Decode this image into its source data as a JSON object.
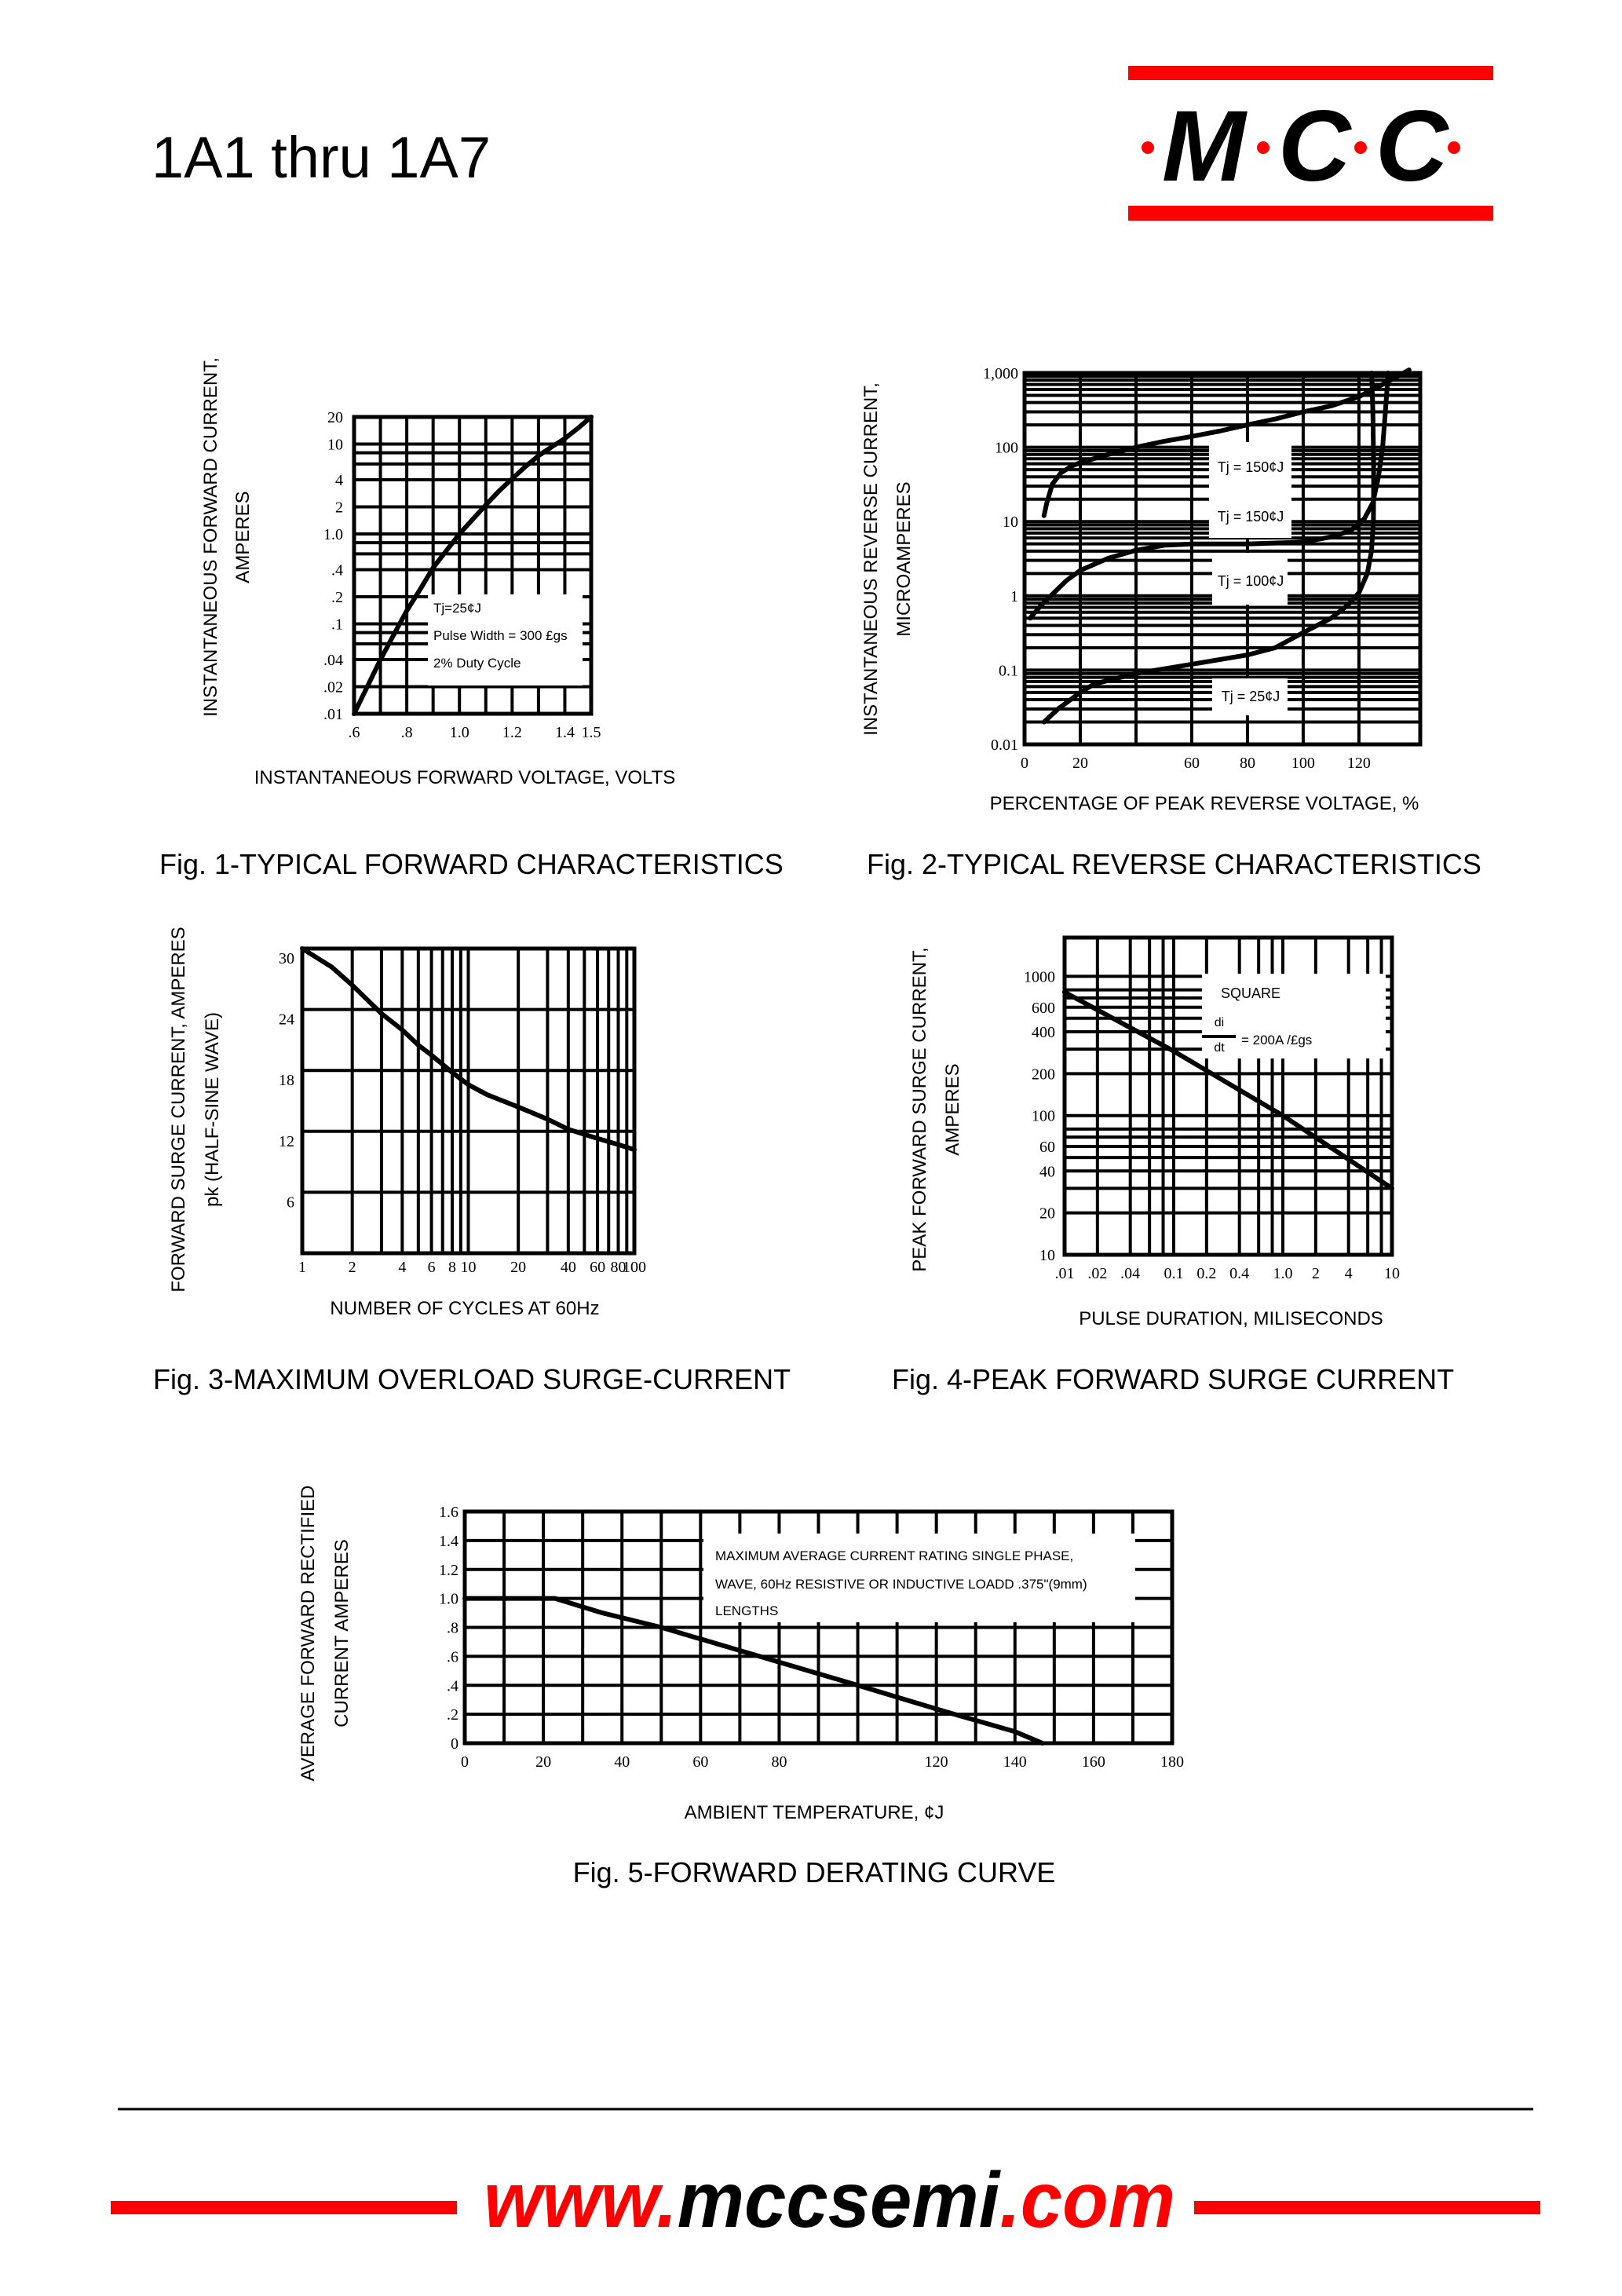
{
  "header": {
    "title": "1A1 thru 1A7",
    "logo": {
      "letters": [
        "M",
        "C",
        "C"
      ],
      "text_color": "#000000",
      "accent_color": "#ff0000"
    }
  },
  "footer": {
    "url_prefix": "www.",
    "url_name": "mccsemi",
    "url_suffix": ".com",
    "accent_color": "#ff0000"
  },
  "chart_data": [
    {
      "type": "line",
      "caption": "Fig. 1-TYPICAL FORWARD CHARACTERISTICS",
      "xlabel": "INSTANTANEOUS FORWARD VOLTAGE, VOLTS",
      "ylabel": [
        "INSTANTANEOUS FORWARD CURRENT,",
        "AMPERES"
      ],
      "xscale": "linear",
      "yscale": "log",
      "xlim": [
        0.6,
        1.5
      ],
      "ylim": [
        0.01,
        20
      ],
      "grid": true,
      "x_ticks": [
        {
          "v": 0.6,
          "label": ".6"
        },
        {
          "v": 0.8,
          "label": ".8"
        },
        {
          "v": 1.0,
          "label": "1.0"
        },
        {
          "v": 1.2,
          "label": "1.2"
        },
        {
          "v": 1.4,
          "label": "1.4"
        },
        {
          "v": 1.5,
          "label": "1.5"
        }
      ],
      "y_ticks": [
        {
          "v": 20,
          "label": "20"
        },
        {
          "v": 10,
          "label": "10"
        },
        {
          "v": 4,
          "label": "4"
        },
        {
          "v": 2,
          "label": "2"
        },
        {
          "v": 1,
          "label": "1.0"
        },
        {
          "v": 0.4,
          "label": ".4"
        },
        {
          "v": 0.2,
          "label": ".2"
        },
        {
          "v": 0.1,
          "label": ".1"
        },
        {
          "v": 0.04,
          "label": ".04"
        },
        {
          "v": 0.02,
          "label": ".02"
        },
        {
          "v": 0.01,
          "label": ".01"
        }
      ],
      "annotations": [
        "Tj=25¢J",
        "Pulse Width = 300  £gs",
        "2% Duty Cycle"
      ],
      "series": [
        {
          "points": [
            [
              0.6,
              0.01
            ],
            [
              0.65,
              0.02
            ],
            [
              0.7,
              0.04
            ],
            [
              0.75,
              0.075
            ],
            [
              0.8,
              0.14
            ],
            [
              0.85,
              0.24
            ],
            [
              0.9,
              0.42
            ],
            [
              0.95,
              0.65
            ],
            [
              1.0,
              1.0
            ],
            [
              1.05,
              1.45
            ],
            [
              1.1,
              2.1
            ],
            [
              1.15,
              3.0
            ],
            [
              1.2,
              4.1
            ],
            [
              1.25,
              5.6
            ],
            [
              1.3,
              7.4
            ],
            [
              1.35,
              9.3
            ],
            [
              1.4,
              11.5
            ],
            [
              1.45,
              15
            ],
            [
              1.5,
              20
            ]
          ]
        }
      ]
    },
    {
      "type": "line",
      "caption": "Fig. 2-TYPICAL REVERSE CHARACTERISTICS",
      "xlabel": "PERCENTAGE OF PEAK REVERSE VOLTAGE, %",
      "ylabel": [
        "INSTANTANEOUS REVERSE CURRENT,",
        "MICROAMPERES"
      ],
      "xscale": "linear",
      "yscale": "log",
      "xlim": [
        0,
        142
      ],
      "ylim": [
        0.01,
        1000
      ],
      "grid": true,
      "x_ticks": [
        {
          "v": 0,
          "label": "0"
        },
        {
          "v": 20,
          "label": "20"
        },
        {
          "v": 60,
          "label": "60"
        },
        {
          "v": 80,
          "label": "80"
        },
        {
          "v": 100,
          "label": "100"
        },
        {
          "v": 120,
          "label": "120"
        }
      ],
      "y_ticks": [
        {
          "v": 1000,
          "label": "1,000"
        },
        {
          "v": 100,
          "label": "100"
        },
        {
          "v": 10,
          "label": "10"
        },
        {
          "v": 1,
          "label": "1"
        },
        {
          "v": 0.1,
          "label": "0.1"
        },
        {
          "v": 0.01,
          "label": "0.01"
        }
      ],
      "annotations": [
        "Tj = 150¢J",
        "Tj = 150¢J",
        "Tj = 100¢J",
        "Tj = 25¢J"
      ],
      "series": [
        {
          "points": [
            [
              7,
              12
            ],
            [
              8,
              18
            ],
            [
              10,
              32
            ],
            [
              13,
              45
            ],
            [
              17,
              56
            ],
            [
              20,
              62
            ],
            [
              30,
              80
            ],
            [
              40,
              100
            ],
            [
              50,
              120
            ],
            [
              60,
              140
            ],
            [
              70,
              165
            ],
            [
              80,
              200
            ],
            [
              90,
              240
            ],
            [
              100,
              300
            ],
            [
              110,
              360
            ],
            [
              120,
              480
            ],
            [
              130,
              750
            ],
            [
              138,
              1100
            ]
          ]
        },
        {
          "points": [
            [
              2,
              0.5
            ],
            [
              6,
              0.75
            ],
            [
              10,
              1.05
            ],
            [
              15,
              1.6
            ],
            [
              20,
              2.2
            ],
            [
              30,
              3.2
            ],
            [
              40,
              4.1
            ],
            [
              50,
              4.8
            ],
            [
              60,
              5
            ],
            [
              80,
              5
            ],
            [
              100,
              5.3
            ],
            [
              110,
              6.2
            ],
            [
              117,
              7.5
            ],
            [
              122,
              11
            ],
            [
              125,
              18
            ],
            [
              127,
              40
            ],
            [
              128.5,
              100
            ],
            [
              129.5,
              300
            ],
            [
              130.5,
              1000
            ]
          ]
        },
        {
          "points": [
            [
              7,
              0.02
            ],
            [
              12,
              0.03
            ],
            [
              20,
              0.05
            ],
            [
              25,
              0.065
            ],
            [
              40,
              0.09
            ],
            [
              60,
              0.12
            ],
            [
              80,
              0.16
            ],
            [
              90,
              0.2
            ],
            [
              100,
              0.32
            ],
            [
              110,
              0.5
            ],
            [
              116,
              0.75
            ],
            [
              120,
              1.1
            ],
            [
              123,
              2
            ],
            [
              124.5,
              4
            ],
            [
              125.2,
              10
            ],
            [
              125.3,
              50
            ],
            [
              125,
              300
            ],
            [
              124.6,
              1000
            ]
          ]
        }
      ]
    },
    {
      "type": "line",
      "caption": "Fig. 3-MAXIMUM OVERLOAD SURGE-CURRENT",
      "xlabel": "NUMBER OF CYCLES AT 60Hz",
      "ylabel": [
        "FORWARD SURGE CURRENT, AMPERES",
        "pk (HALF-SINE WAVE)"
      ],
      "xscale": "log",
      "yscale": "linear",
      "xlim": [
        1,
        100
      ],
      "ylim": [
        0,
        30
      ],
      "grid": true,
      "x_ticks": [
        {
          "v": 1,
          "label": "1"
        },
        {
          "v": 2,
          "label": "2"
        },
        {
          "v": 4,
          "label": "4"
        },
        {
          "v": 6,
          "label": "6"
        },
        {
          "v": 8,
          "label": "8"
        },
        {
          "v": 10,
          "label": "10"
        },
        {
          "v": 20,
          "label": "20"
        },
        {
          "v": 40,
          "label": "40"
        },
        {
          "v": 60,
          "label": "60"
        },
        {
          "v": 80,
          "label": "80"
        },
        {
          "v": 100,
          "label": "100"
        }
      ],
      "y_ticks": [
        {
          "v": 30,
          "label": "30"
        },
        {
          "v": 24,
          "label": "24"
        },
        {
          "v": 18,
          "label": "18"
        },
        {
          "v": 12,
          "label": "12"
        },
        {
          "v": 6,
          "label": "6"
        }
      ],
      "annotations": [],
      "series": [
        {
          "points": [
            [
              1,
              30
            ],
            [
              1.5,
              28.2
            ],
            [
              2,
              26.4
            ],
            [
              3,
              23.6
            ],
            [
              4,
              22
            ],
            [
              5,
              20.5
            ],
            [
              6,
              19.5
            ],
            [
              7,
              18.6
            ],
            [
              8,
              17.8
            ],
            [
              10,
              16.6
            ],
            [
              13,
              15.6
            ],
            [
              20,
              14.4
            ],
            [
              30,
              13.2
            ],
            [
              40,
              12.2
            ],
            [
              60,
              11.3
            ],
            [
              80,
              10.7
            ],
            [
              100,
              10.2
            ]
          ]
        }
      ]
    },
    {
      "type": "line",
      "caption": "Fig. 4-PEAK FORWARD SURGE CURRENT",
      "xlabel": "PULSE DURATION, MILISECONDS",
      "ylabel": [
        "PEAK FORWARD SURGE CURRENT,",
        "AMPERES"
      ],
      "xscale": "log",
      "yscale": "log",
      "xlim": [
        0.01,
        10
      ],
      "ylim": [
        10,
        1900
      ],
      "grid": true,
      "x_ticks": [
        {
          "v": 0.01,
          "label": ".01"
        },
        {
          "v": 0.02,
          "label": ".02"
        },
        {
          "v": 0.04,
          "label": ".04"
        },
        {
          "v": 0.1,
          "label": "0.1"
        },
        {
          "v": 0.2,
          "label": "0.2"
        },
        {
          "v": 0.4,
          "label": "0.4"
        },
        {
          "v": 1,
          "label": "1.0"
        },
        {
          "v": 2,
          "label": "2"
        },
        {
          "v": 4,
          "label": "4"
        },
        {
          "v": 10,
          "label": "10"
        }
      ],
      "y_ticks": [
        {
          "v": 1000,
          "label": "1000"
        },
        {
          "v": 600,
          "label": "600"
        },
        {
          "v": 400,
          "label": "400"
        },
        {
          "v": 200,
          "label": "200"
        },
        {
          "v": 100,
          "label": "100"
        },
        {
          "v": 60,
          "label": "60"
        },
        {
          "v": 40,
          "label": "40"
        },
        {
          "v": 20,
          "label": "20"
        },
        {
          "v": 10,
          "label": "10"
        }
      ],
      "annotations": [
        "SQUARE",
        "di",
        "dt",
        "= 200A /£gs"
      ],
      "series": [
        {
          "points": [
            [
              0.01,
              770
            ],
            [
              0.1,
              290
            ],
            [
              1,
              100
            ],
            [
              10,
              30
            ]
          ]
        }
      ]
    },
    {
      "type": "line",
      "caption": "Fig. 5-FORWARD DERATING CURVE",
      "xlabel": "AMBIENT TEMPERATURE,  ¢J",
      "ylabel": [
        "AVERAGE FORWARD RECTIFIED",
        "CURRENT AMPERES"
      ],
      "xscale": "linear",
      "yscale": "linear",
      "xlim": [
        0,
        180
      ],
      "ylim": [
        0,
        1.6
      ],
      "grid": true,
      "x_ticks": [
        {
          "v": 0,
          "label": "0"
        },
        {
          "v": 20,
          "label": "20"
        },
        {
          "v": 40,
          "label": "40"
        },
        {
          "v": 60,
          "label": "60"
        },
        {
          "v": 80,
          "label": "80"
        },
        {
          "v": 120,
          "label": "120"
        },
        {
          "v": 140,
          "label": "140"
        },
        {
          "v": 160,
          "label": "160"
        },
        {
          "v": 180,
          "label": "180"
        }
      ],
      "y_ticks": [
        {
          "v": 1.6,
          "label": "1.6"
        },
        {
          "v": 1.4,
          "label": "1.4"
        },
        {
          "v": 1.2,
          "label": "1.2"
        },
        {
          "v": 1.0,
          "label": "1.0"
        },
        {
          "v": 0.8,
          "label": ".8"
        },
        {
          "v": 0.6,
          "label": ".6"
        },
        {
          "v": 0.4,
          "label": ".4"
        },
        {
          "v": 0.2,
          "label": ".2"
        },
        {
          "v": 0,
          "label": "0"
        }
      ],
      "annotations": [
        "MAXIMUM AVERAGE CURRENT RATING SINGLE PHASE,",
        "WAVE, 60Hz RESISTIVE OR INDUCTIVE LOADD .375\"(9mm)",
        "LENGTHS"
      ],
      "series": [
        {
          "points": [
            [
              0,
              1.0
            ],
            [
              23,
              1.0
            ],
            [
              35,
              0.9
            ],
            [
              50,
              0.8
            ],
            [
              75,
              0.6
            ],
            [
              100,
              0.4
            ],
            [
              122,
              0.22
            ],
            [
              140,
              0.08
            ],
            [
              147,
              0
            ]
          ]
        }
      ]
    }
  ]
}
